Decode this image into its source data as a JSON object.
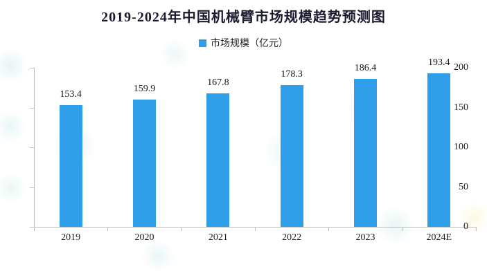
{
  "chart_data": {
    "type": "bar",
    "title": "2019-2024年中国机械臂市场规模趋势预测图",
    "legend": {
      "label": "市场规模（亿元）",
      "position": "top-center"
    },
    "categories": [
      "2019",
      "2020",
      "2021",
      "2022",
      "2023",
      "2024E"
    ],
    "values": [
      153.4,
      159.9,
      167.8,
      178.3,
      186.4,
      193.4
    ],
    "value_labels": [
      "153.4",
      "159.9",
      "167.8",
      "178.3",
      "186.4",
      "193.4"
    ],
    "xlabel": "",
    "ylabel": "",
    "ylim": [
      0,
      200
    ],
    "yticks": [
      0,
      50,
      100,
      150,
      200
    ],
    "grid": false,
    "bar_color": "#2f9fe9",
    "axis_color": "#bdbdbd",
    "title_color": "#1b1b30",
    "text_color": "#1d1d1d"
  },
  "watermark": {
    "style": "faint scattered light-teal blobs",
    "color_hex": "#dff2f1"
  }
}
